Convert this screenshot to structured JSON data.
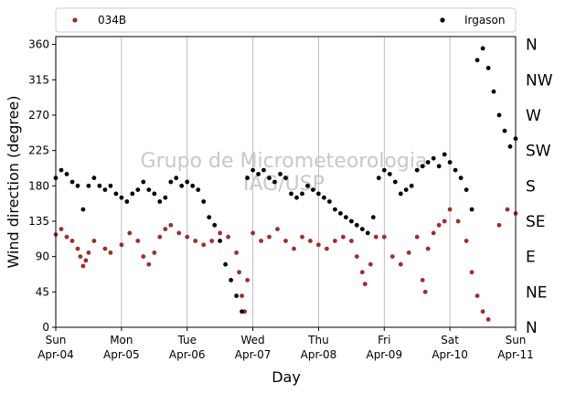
{
  "chart_data": {
    "type": "scatter",
    "xlabel": "Day",
    "ylabel": "Wind direction (degree)",
    "ylim": [
      0,
      370
    ],
    "xlim": [
      "2021-04-04T00:00",
      "2021-04-11T00:00"
    ],
    "yticks": [
      0,
      45,
      90,
      135,
      180,
      225,
      270,
      315,
      360
    ],
    "compass_ticks": [
      {
        "value": 0,
        "label": "N"
      },
      {
        "value": 45,
        "label": "NE"
      },
      {
        "value": 90,
        "label": "E"
      },
      {
        "value": 135,
        "label": "SE"
      },
      {
        "value": 180,
        "label": "S"
      },
      {
        "value": 225,
        "label": "SW"
      },
      {
        "value": 270,
        "label": "W"
      },
      {
        "value": 315,
        "label": "NW"
      },
      {
        "value": 360,
        "label": "N"
      }
    ],
    "xticks": [
      {
        "date": "2021-04-04",
        "weekday": "Sun",
        "label": "Apr-04"
      },
      {
        "date": "2021-04-05",
        "weekday": "Mon",
        "label": "Apr-05"
      },
      {
        "date": "2021-04-06",
        "weekday": "Tue",
        "label": "Apr-06"
      },
      {
        "date": "2021-04-07",
        "weekday": "Wed",
        "label": "Apr-07"
      },
      {
        "date": "2021-04-08",
        "weekday": "Thu",
        "label": "Apr-08"
      },
      {
        "date": "2021-04-09",
        "weekday": "Fri",
        "label": "Apr-09"
      },
      {
        "date": "2021-04-10",
        "weekday": "Sat",
        "label": "Apr-10"
      },
      {
        "date": "2021-04-11",
        "weekday": "Sun",
        "label": "Apr-11"
      }
    ],
    "grid": "vertical",
    "legend_position": "top",
    "watermark": [
      "Grupo de Micrometeorologia",
      "IAG/USP"
    ],
    "series": [
      {
        "name": "034B",
        "color": "#a52a2a",
        "points": [
          [
            "2021-04-04T00:00",
            118
          ],
          [
            "2021-04-04T02:00",
            125
          ],
          [
            "2021-04-04T04:00",
            115
          ],
          [
            "2021-04-04T06:00",
            110
          ],
          [
            "2021-04-04T08:00",
            100
          ],
          [
            "2021-04-04T09:00",
            90
          ],
          [
            "2021-04-04T10:00",
            78
          ],
          [
            "2021-04-04T11:00",
            85
          ],
          [
            "2021-04-04T12:00",
            95
          ],
          [
            "2021-04-04T14:00",
            110
          ],
          [
            "2021-04-04T18:00",
            100
          ],
          [
            "2021-04-04T20:00",
            95
          ],
          [
            "2021-04-05T00:00",
            105
          ],
          [
            "2021-04-05T03:00",
            120
          ],
          [
            "2021-04-05T06:00",
            110
          ],
          [
            "2021-04-05T08:00",
            90
          ],
          [
            "2021-04-05T10:00",
            80
          ],
          [
            "2021-04-05T12:00",
            95
          ],
          [
            "2021-04-05T14:00",
            115
          ],
          [
            "2021-04-05T16:00",
            125
          ],
          [
            "2021-04-05T18:00",
            130
          ],
          [
            "2021-04-05T21:00",
            120
          ],
          [
            "2021-04-06T00:00",
            115
          ],
          [
            "2021-04-06T03:00",
            110
          ],
          [
            "2021-04-06T06:00",
            105
          ],
          [
            "2021-04-06T09:00",
            110
          ],
          [
            "2021-04-06T12:00",
            120
          ],
          [
            "2021-04-06T15:00",
            115
          ],
          [
            "2021-04-06T18:00",
            95
          ],
          [
            "2021-04-06T19:00",
            70
          ],
          [
            "2021-04-06T20:00",
            40
          ],
          [
            "2021-04-06T21:00",
            20
          ],
          [
            "2021-04-06T22:00",
            60
          ],
          [
            "2021-04-07T00:00",
            120
          ],
          [
            "2021-04-07T03:00",
            110
          ],
          [
            "2021-04-07T06:00",
            115
          ],
          [
            "2021-04-07T09:00",
            125
          ],
          [
            "2021-04-07T12:00",
            110
          ],
          [
            "2021-04-07T15:00",
            100
          ],
          [
            "2021-04-07T18:00",
            115
          ],
          [
            "2021-04-07T21:00",
            110
          ],
          [
            "2021-04-08T00:00",
            105
          ],
          [
            "2021-04-08T03:00",
            100
          ],
          [
            "2021-04-08T06:00",
            110
          ],
          [
            "2021-04-08T09:00",
            115
          ],
          [
            "2021-04-08T12:00",
            110
          ],
          [
            "2021-04-08T14:00",
            90
          ],
          [
            "2021-04-08T16:00",
            70
          ],
          [
            "2021-04-08T17:00",
            55
          ],
          [
            "2021-04-08T19:00",
            80
          ],
          [
            "2021-04-08T21:00",
            115
          ],
          [
            "2021-04-09T00:00",
            115
          ],
          [
            "2021-04-09T03:00",
            90
          ],
          [
            "2021-04-09T06:00",
            80
          ],
          [
            "2021-04-09T09:00",
            95
          ],
          [
            "2021-04-09T12:00",
            115
          ],
          [
            "2021-04-09T14:00",
            60
          ],
          [
            "2021-04-09T15:00",
            45
          ],
          [
            "2021-04-09T16:00",
            100
          ],
          [
            "2021-04-09T18:00",
            120
          ],
          [
            "2021-04-09T20:00",
            130
          ],
          [
            "2021-04-09T22:00",
            135
          ],
          [
            "2021-04-10T00:00",
            150
          ],
          [
            "2021-04-10T03:00",
            135
          ],
          [
            "2021-04-10T06:00",
            110
          ],
          [
            "2021-04-10T08:00",
            70
          ],
          [
            "2021-04-10T10:00",
            40
          ],
          [
            "2021-04-10T12:00",
            20
          ],
          [
            "2021-04-10T14:00",
            10
          ],
          [
            "2021-04-10T18:00",
            130
          ],
          [
            "2021-04-10T21:00",
            150
          ],
          [
            "2021-04-11T00:00",
            145
          ]
        ]
      },
      {
        "name": "Irgason",
        "color": "#000000",
        "points": [
          [
            "2021-04-04T00:00",
            190
          ],
          [
            "2021-04-04T02:00",
            200
          ],
          [
            "2021-04-04T04:00",
            195
          ],
          [
            "2021-04-04T06:00",
            185
          ],
          [
            "2021-04-04T08:00",
            180
          ],
          [
            "2021-04-04T10:00",
            150
          ],
          [
            "2021-04-04T12:00",
            180
          ],
          [
            "2021-04-04T14:00",
            190
          ],
          [
            "2021-04-04T16:00",
            180
          ],
          [
            "2021-04-04T18:00",
            175
          ],
          [
            "2021-04-04T20:00",
            180
          ],
          [
            "2021-04-04T22:00",
            170
          ],
          [
            "2021-04-05T00:00",
            165
          ],
          [
            "2021-04-05T02:00",
            160
          ],
          [
            "2021-04-05T04:00",
            170
          ],
          [
            "2021-04-05T06:00",
            175
          ],
          [
            "2021-04-05T08:00",
            185
          ],
          [
            "2021-04-05T10:00",
            175
          ],
          [
            "2021-04-05T12:00",
            170
          ],
          [
            "2021-04-05T14:00",
            160
          ],
          [
            "2021-04-05T16:00",
            165
          ],
          [
            "2021-04-05T18:00",
            185
          ],
          [
            "2021-04-05T20:00",
            190
          ],
          [
            "2021-04-05T22:00",
            180
          ],
          [
            "2021-04-06T00:00",
            185
          ],
          [
            "2021-04-06T02:00",
            180
          ],
          [
            "2021-04-06T04:00",
            175
          ],
          [
            "2021-04-06T06:00",
            160
          ],
          [
            "2021-04-06T08:00",
            140
          ],
          [
            "2021-04-06T10:00",
            130
          ],
          [
            "2021-04-06T12:00",
            110
          ],
          [
            "2021-04-06T14:00",
            80
          ],
          [
            "2021-04-06T16:00",
            60
          ],
          [
            "2021-04-06T18:00",
            40
          ],
          [
            "2021-04-06T20:00",
            20
          ],
          [
            "2021-04-06T22:00",
            190
          ],
          [
            "2021-04-07T00:00",
            200
          ],
          [
            "2021-04-07T02:00",
            195
          ],
          [
            "2021-04-07T04:00",
            200
          ],
          [
            "2021-04-07T06:00",
            190
          ],
          [
            "2021-04-07T08:00",
            185
          ],
          [
            "2021-04-07T10:00",
            195
          ],
          [
            "2021-04-07T12:00",
            190
          ],
          [
            "2021-04-07T14:00",
            170
          ],
          [
            "2021-04-07T16:00",
            165
          ],
          [
            "2021-04-07T18:00",
            170
          ],
          [
            "2021-04-07T20:00",
            180
          ],
          [
            "2021-04-07T22:00",
            175
          ],
          [
            "2021-04-08T00:00",
            170
          ],
          [
            "2021-04-08T02:00",
            165
          ],
          [
            "2021-04-08T04:00",
            160
          ],
          [
            "2021-04-08T06:00",
            150
          ],
          [
            "2021-04-08T08:00",
            145
          ],
          [
            "2021-04-08T10:00",
            140
          ],
          [
            "2021-04-08T12:00",
            135
          ],
          [
            "2021-04-08T14:00",
            130
          ],
          [
            "2021-04-08T16:00",
            125
          ],
          [
            "2021-04-08T18:00",
            120
          ],
          [
            "2021-04-08T20:00",
            140
          ],
          [
            "2021-04-08T22:00",
            190
          ],
          [
            "2021-04-09T00:00",
            200
          ],
          [
            "2021-04-09T02:00",
            195
          ],
          [
            "2021-04-09T04:00",
            185
          ],
          [
            "2021-04-09T06:00",
            170
          ],
          [
            "2021-04-09T08:00",
            175
          ],
          [
            "2021-04-09T10:00",
            180
          ],
          [
            "2021-04-09T12:00",
            200
          ],
          [
            "2021-04-09T14:00",
            205
          ],
          [
            "2021-04-09T16:00",
            210
          ],
          [
            "2021-04-09T18:00",
            215
          ],
          [
            "2021-04-09T20:00",
            205
          ],
          [
            "2021-04-09T22:00",
            220
          ],
          [
            "2021-04-10T00:00",
            210
          ],
          [
            "2021-04-10T02:00",
            200
          ],
          [
            "2021-04-10T04:00",
            190
          ],
          [
            "2021-04-10T06:00",
            175
          ],
          [
            "2021-04-10T08:00",
            150
          ],
          [
            "2021-04-10T10:00",
            340
          ],
          [
            "2021-04-10T12:00",
            355
          ],
          [
            "2021-04-10T14:00",
            330
          ],
          [
            "2021-04-10T16:00",
            300
          ],
          [
            "2021-04-10T18:00",
            270
          ],
          [
            "2021-04-10T20:00",
            250
          ],
          [
            "2021-04-10T22:00",
            230
          ],
          [
            "2021-04-11T00:00",
            240
          ]
        ]
      }
    ]
  }
}
